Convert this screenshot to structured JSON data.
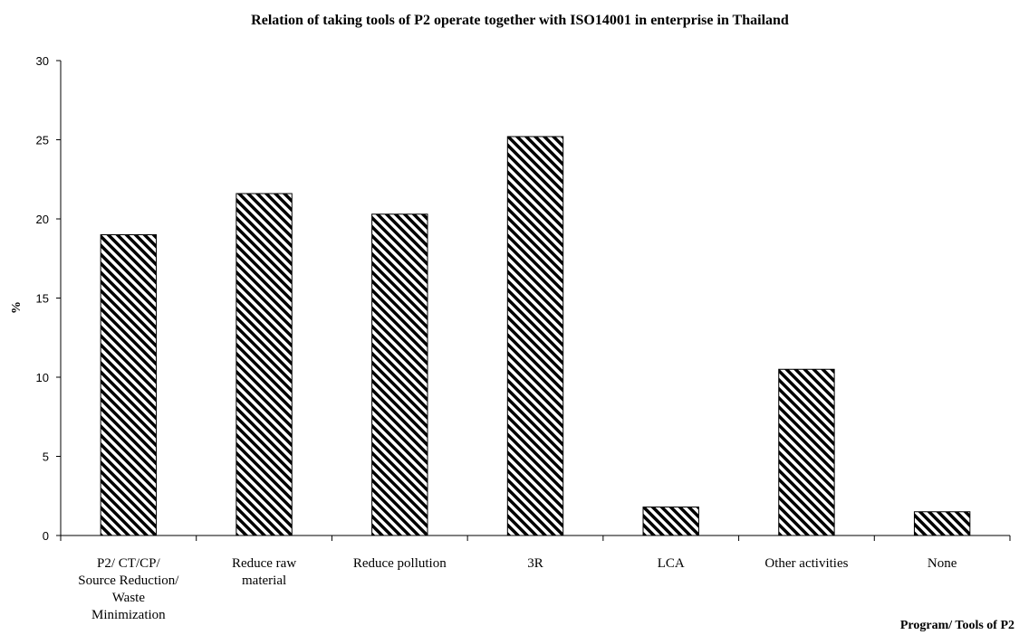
{
  "chart_data": {
    "type": "bar",
    "title": "Relation of taking tools of P2 operate together with ISO14001 in enterprise in Thailand",
    "ylabel": "%",
    "xlabel": "Program/ Tools of P2",
    "ylim": [
      0,
      30
    ],
    "yticks": [
      0,
      5,
      10,
      15,
      20,
      25,
      30
    ],
    "categories": [
      [
        "P2/ CT/CP/",
        "Source Reduction/",
        "Waste",
        "Minimization"
      ],
      [
        "Reduce raw",
        "material"
      ],
      [
        "Reduce pollution"
      ],
      [
        "3R"
      ],
      [
        "LCA"
      ],
      [
        "Other activities"
      ],
      [
        "None"
      ]
    ],
    "values": [
      19.0,
      21.6,
      20.3,
      25.2,
      1.8,
      10.5,
      1.5
    ],
    "bar_fill": "diagonal-hatch",
    "colors": {
      "stroke": "#000000",
      "background": "#ffffff"
    },
    "grid": false,
    "legend": false
  }
}
